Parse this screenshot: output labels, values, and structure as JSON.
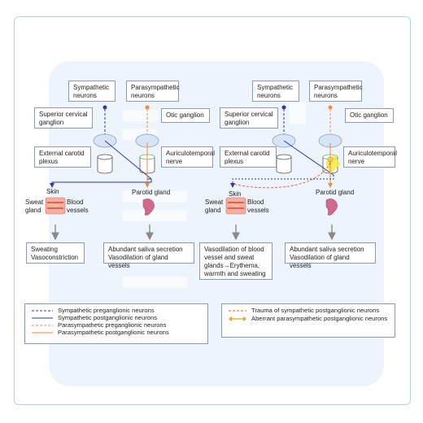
{
  "left": {
    "sympathetic_neurons": "Sympathetic neurons",
    "parasympathetic_neurons": "Parasympathetic neurons",
    "superior_cervical_ganglion": "Superior cervical ganglion",
    "otic_ganglion": "Otic ganglion",
    "external_carotid_plexus": "External carotid plexus",
    "auriculotemporal_nerve": "Auriculotemporal nerve",
    "skin": "Skin",
    "sweat_gland": "Sweat gland",
    "blood_vessels": "Blood vessels",
    "parotid_gland": "Parotid gland",
    "outcome_skin": "Sweating Vasoconstriction",
    "outcome_parotid": "Abundant saliva secretion Vasodilation of gland vessels"
  },
  "right": {
    "sympathetic_neurons": "Sympathetic neurons",
    "parasympathetic_neurons": "Parasympathetic neurons",
    "superior_cervical_ganglion": "Superior cervical ganglion",
    "otic_ganglion": "Otic ganglion",
    "external_carotid_plexus": "External carotid plexus",
    "auriculotemporal_nerve": "Auriculotemporal nerve",
    "skin": "Skin",
    "sweat_gland": "Sweat gland",
    "blood_vessels": "Blood vessels",
    "parotid_gland": "Parotid gland",
    "outcome_skin": "Vasodilation of blood vessel and sweat glands→Erythema, warmth and sweating",
    "outcome_parotid": "Abundant saliva secretion Vasodilation of gland vessels"
  },
  "legend_left": [
    "Sympathetic preganglionic neurons",
    "Sympathetic postganglionic neurons",
    "Parasympathetic preganglionic neurons",
    "Parasympathetic postganglionic neurons"
  ],
  "legend_right": [
    "Trauma of sympathetic postganglionic neurons",
    "Aberrant parasympathetic postganglionic neurons"
  ],
  "colors": {
    "sympathetic": "#2f3a9e",
    "parasympathetic": "#f08a3c",
    "trauma": "#e05a2a",
    "aberrant": "#e6a020",
    "border": "#8a9bb0"
  }
}
